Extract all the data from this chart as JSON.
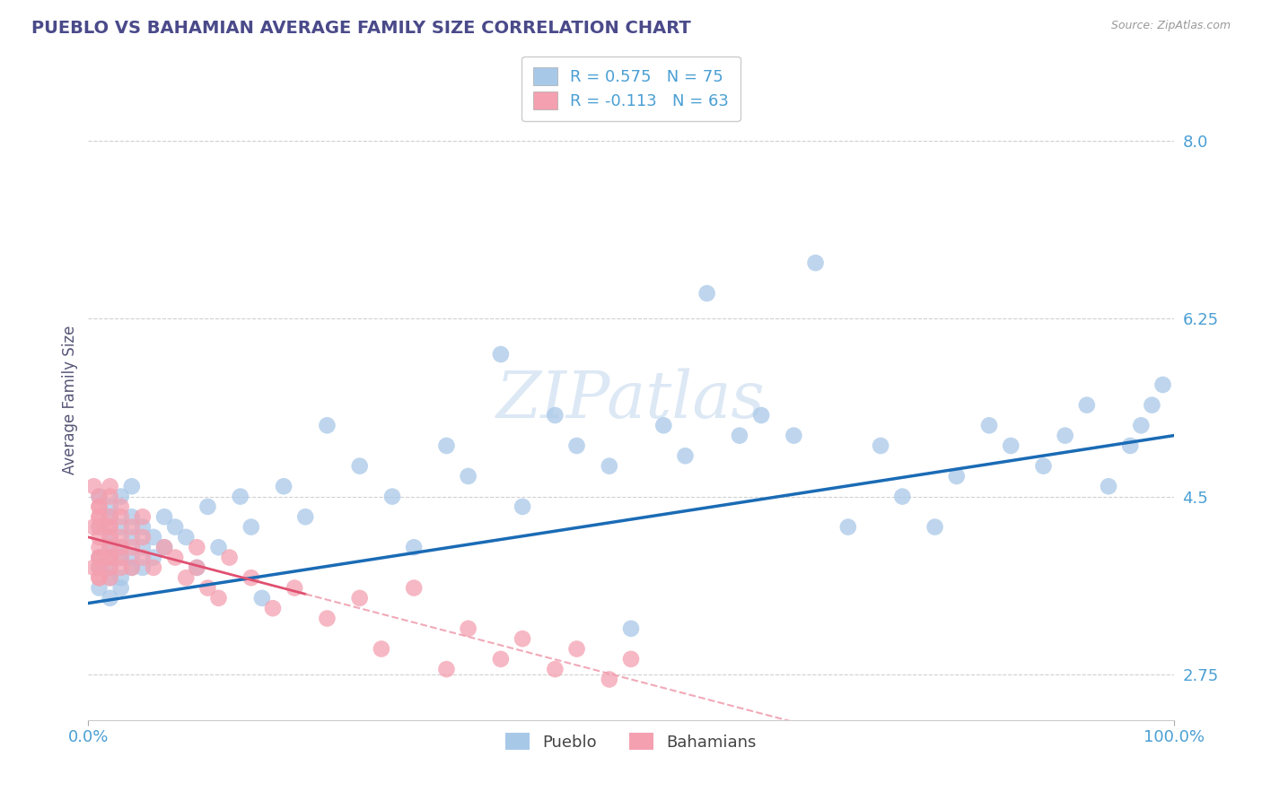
{
  "title": "PUEBLO VS BAHAMIAN AVERAGE FAMILY SIZE CORRELATION CHART",
  "source": "Source: ZipAtlas.com",
  "ylabel": "Average Family Size",
  "xlim": [
    0,
    1
  ],
  "ylim": [
    2.3,
    8.6
  ],
  "yticks": [
    2.75,
    4.5,
    6.25,
    8.0
  ],
  "xtick_labels": [
    "0.0%",
    "100.0%"
  ],
  "pueblo_R": 0.575,
  "pueblo_N": 75,
  "bahamas_R": -0.113,
  "bahamas_N": 63,
  "pueblo_scatter_color": "#a8c8e8",
  "bahamas_scatter_color": "#f4a0b0",
  "pueblo_line_color": "#1a6bb5",
  "bahamas_line_color_solid": "#e05070",
  "bahamas_line_color_dash": "#f0a0b0",
  "grid_color": "#d0d0d0",
  "bg_color": "#ffffff",
  "title_color": "#4a4a8a",
  "axis_label_color": "#555577",
  "tick_color": "#4a9fd4",
  "legend_label1": "Pueblo",
  "legend_label2": "Bahamians",
  "pueblo_x": [
    0.01,
    0.01,
    0.01,
    0.01,
    0.01,
    0.02,
    0.02,
    0.02,
    0.02,
    0.02,
    0.02,
    0.02,
    0.02,
    0.03,
    0.03,
    0.03,
    0.03,
    0.03,
    0.03,
    0.04,
    0.04,
    0.04,
    0.04,
    0.04,
    0.05,
    0.05,
    0.05,
    0.06,
    0.06,
    0.07,
    0.07,
    0.08,
    0.09,
    0.1,
    0.11,
    0.12,
    0.14,
    0.15,
    0.16,
    0.18,
    0.2,
    0.22,
    0.25,
    0.28,
    0.3,
    0.33,
    0.35,
    0.38,
    0.4,
    0.43,
    0.45,
    0.48,
    0.5,
    0.53,
    0.55,
    0.57,
    0.6,
    0.62,
    0.65,
    0.67,
    0.7,
    0.73,
    0.75,
    0.78,
    0.8,
    0.83,
    0.85,
    0.88,
    0.9,
    0.92,
    0.94,
    0.96,
    0.97,
    0.98,
    0.99
  ],
  "pueblo_y": [
    3.9,
    4.2,
    3.6,
    4.5,
    3.8,
    4.0,
    3.7,
    4.3,
    3.5,
    4.1,
    3.9,
    4.4,
    3.8,
    4.2,
    3.6,
    4.0,
    4.5,
    3.9,
    3.7,
    4.1,
    3.8,
    4.3,
    3.9,
    4.6,
    4.0,
    4.2,
    3.8,
    4.1,
    3.9,
    4.3,
    4.0,
    4.2,
    4.1,
    3.8,
    4.4,
    4.0,
    4.5,
    4.2,
    3.5,
    4.6,
    4.3,
    5.2,
    4.8,
    4.5,
    4.0,
    5.0,
    4.7,
    5.9,
    4.4,
    5.3,
    5.0,
    4.8,
    3.2,
    5.2,
    4.9,
    6.5,
    5.1,
    5.3,
    5.1,
    6.8,
    4.2,
    5.0,
    4.5,
    4.2,
    4.7,
    5.2,
    5.0,
    4.8,
    5.1,
    5.4,
    4.6,
    5.0,
    5.2,
    5.4,
    5.6
  ],
  "bahamas_x": [
    0.005,
    0.005,
    0.005,
    0.01,
    0.01,
    0.01,
    0.01,
    0.01,
    0.01,
    0.01,
    0.01,
    0.01,
    0.01,
    0.01,
    0.01,
    0.01,
    0.02,
    0.02,
    0.02,
    0.02,
    0.02,
    0.02,
    0.02,
    0.02,
    0.02,
    0.02,
    0.02,
    0.03,
    0.03,
    0.03,
    0.03,
    0.03,
    0.03,
    0.04,
    0.04,
    0.04,
    0.05,
    0.05,
    0.05,
    0.06,
    0.07,
    0.08,
    0.09,
    0.1,
    0.1,
    0.11,
    0.12,
    0.13,
    0.15,
    0.17,
    0.19,
    0.22,
    0.25,
    0.27,
    0.3,
    0.33,
    0.35,
    0.38,
    0.4,
    0.43,
    0.45,
    0.48,
    0.5
  ],
  "bahamas_y": [
    3.8,
    4.6,
    4.2,
    4.4,
    3.9,
    4.3,
    3.7,
    4.5,
    4.1,
    3.9,
    4.2,
    4.4,
    3.8,
    4.0,
    4.3,
    3.7,
    4.2,
    4.5,
    3.8,
    4.1,
    3.9,
    4.3,
    4.6,
    3.7,
    4.0,
    4.2,
    3.9,
    4.0,
    4.3,
    3.8,
    4.4,
    4.1,
    3.9,
    4.2,
    3.8,
    4.0,
    4.1,
    3.9,
    4.3,
    3.8,
    4.0,
    3.9,
    3.7,
    4.0,
    3.8,
    3.6,
    3.5,
    3.9,
    3.7,
    3.4,
    3.6,
    3.3,
    3.5,
    3.0,
    3.6,
    2.8,
    3.2,
    2.9,
    3.1,
    2.8,
    3.0,
    2.7,
    2.9
  ],
  "pueblo_line_intercept": 3.45,
  "pueblo_line_slope": 1.65,
  "bahamas_line_intercept": 4.1,
  "bahamas_line_slope": -2.8
}
